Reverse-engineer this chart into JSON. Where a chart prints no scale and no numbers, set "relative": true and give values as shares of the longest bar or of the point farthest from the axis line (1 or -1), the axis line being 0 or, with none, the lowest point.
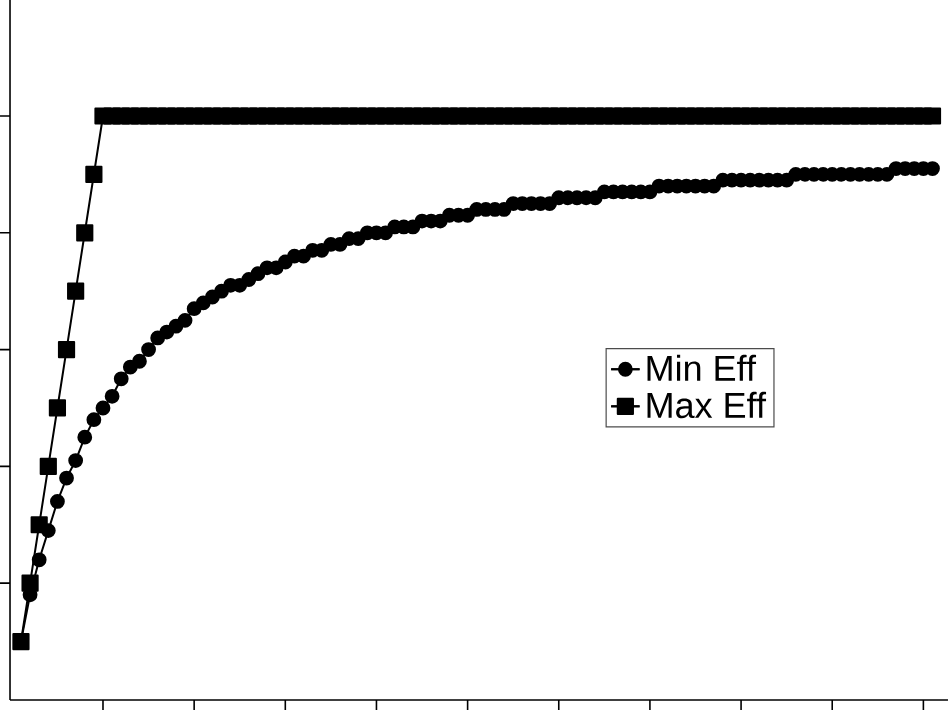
{
  "chart_data": {
    "type": "line",
    "relative": true,
    "legend": "right",
    "categories": [
      null,
      null,
      null,
      null,
      null,
      null,
      null,
      null,
      null,
      null,
      null,
      null,
      null,
      null,
      null,
      null,
      null,
      null,
      null,
      null,
      null,
      null,
      null,
      null,
      null,
      null,
      null,
      null,
      null,
      null,
      null,
      null,
      null,
      null,
      null,
      null,
      null,
      null,
      null,
      null,
      null,
      null,
      null,
      null,
      null,
      null,
      null,
      null,
      null,
      null,
      null,
      null,
      null,
      null,
      null,
      null,
      null,
      null,
      null,
      null,
      null,
      null,
      null,
      null,
      null,
      null,
      null,
      null,
      null,
      null,
      null,
      null,
      null,
      null,
      null,
      null,
      null,
      null,
      null,
      null,
      null,
      null,
      null,
      null,
      null,
      null,
      null,
      null,
      null,
      null,
      null,
      null,
      null,
      null,
      null,
      null,
      null,
      null,
      null,
      null,
      null
    ],
    "series": [
      {
        "name": "Min Eff",
        "color": "#000000",
        "marker": "circle",
        "values": [
          0.1,
          0.18,
          0.24,
          0.29,
          0.34,
          0.38,
          0.41,
          0.45,
          0.48,
          0.5,
          0.52,
          0.55,
          0.57,
          0.58,
          0.6,
          0.62,
          0.63,
          0.64,
          0.65,
          0.67,
          0.68,
          0.69,
          0.7,
          0.71,
          0.71,
          0.72,
          0.73,
          0.74,
          0.74,
          0.75,
          0.76,
          0.76,
          0.77,
          0.77,
          0.78,
          0.78,
          0.79,
          0.79,
          0.8,
          0.8,
          0.8,
          0.81,
          0.81,
          0.81,
          0.82,
          0.82,
          0.82,
          0.83,
          0.83,
          0.83,
          0.84,
          0.84,
          0.84,
          0.84,
          0.85,
          0.85,
          0.85,
          0.85,
          0.85,
          0.86,
          0.86,
          0.86,
          0.86,
          0.86,
          0.87,
          0.87,
          0.87,
          0.87,
          0.87,
          0.87,
          0.88,
          0.88,
          0.88,
          0.88,
          0.88,
          0.88,
          0.88,
          0.89,
          0.89,
          0.89,
          0.89,
          0.89,
          0.89,
          0.89,
          0.89,
          0.9,
          0.9,
          0.9,
          0.9,
          0.9,
          0.9,
          0.9,
          0.9,
          0.9,
          0.9,
          0.9,
          0.91,
          0.91,
          0.91,
          0.91,
          0.91
        ]
      },
      {
        "name": "Max Eff",
        "color": "#000000",
        "marker": "square",
        "values": [
          0.1,
          0.2,
          0.3,
          0.4,
          0.5,
          0.6,
          0.7,
          0.8,
          0.9,
          1.0,
          1.0,
          1.0,
          1.0,
          1.0,
          1.0,
          1.0,
          1.0,
          1.0,
          1.0,
          1.0,
          1.0,
          1.0,
          1.0,
          1.0,
          1.0,
          1.0,
          1.0,
          1.0,
          1.0,
          1.0,
          1.0,
          1.0,
          1.0,
          1.0,
          1.0,
          1.0,
          1.0,
          1.0,
          1.0,
          1.0,
          1.0,
          1.0,
          1.0,
          1.0,
          1.0,
          1.0,
          1.0,
          1.0,
          1.0,
          1.0,
          1.0,
          1.0,
          1.0,
          1.0,
          1.0,
          1.0,
          1.0,
          1.0,
          1.0,
          1.0,
          1.0,
          1.0,
          1.0,
          1.0,
          1.0,
          1.0,
          1.0,
          1.0,
          1.0,
          1.0,
          1.0,
          1.0,
          1.0,
          1.0,
          1.0,
          1.0,
          1.0,
          1.0,
          1.0,
          1.0,
          1.0,
          1.0,
          1.0,
          1.0,
          1.0,
          1.0,
          1.0,
          1.0,
          1.0,
          1.0,
          1.0,
          1.0,
          1.0,
          1.0,
          1.0,
          1.0,
          1.0,
          1.0,
          1.0,
          1.0,
          1.0
        ]
      }
    ]
  }
}
